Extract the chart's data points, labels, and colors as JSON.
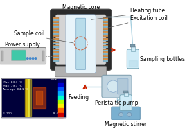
{
  "bg_color": "#ffffff",
  "label_fontsize": 5.5,
  "small_fontsize": 4.0,
  "labels": {
    "magnetic_core": "Magnetic core",
    "heating_tube": "Heating tube",
    "excitation_coil": "Excitation coil",
    "sample_coil": "Sample coil",
    "power_supply": "Power supply",
    "feeding": "Feeding",
    "sampling_bottles": "Sampling bottles",
    "peristaltic_pump": "Peristaltic pump",
    "magnetic_stirrer": "Magnetic stirrer"
  },
  "colors": {
    "dark_core": "#2a2a2a",
    "inner_gray": "#c8c8c8",
    "light_blue": "#b8dcea",
    "blue_coil": "#88c0d8",
    "orange_coil": "#d4904a",
    "white": "#ffffff",
    "light_gray": "#c8c8c8",
    "red_arrow": "#cc2200",
    "tube_blue": "#a8d0e0",
    "bottle_color": "#d0ecf8",
    "pump_body": "#b8ccd8",
    "stirrer_blue": "#7ab0cc",
    "ps_green": "#40c8a8",
    "ps_gray": "#c0c0c0",
    "connector": "#888888"
  }
}
